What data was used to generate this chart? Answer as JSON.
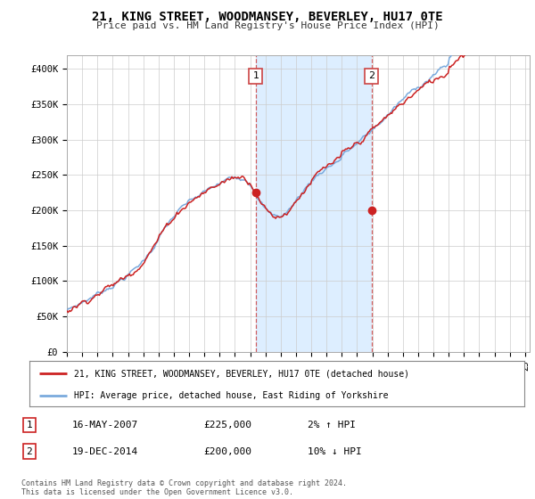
{
  "title": "21, KING STREET, WOODMANSEY, BEVERLEY, HU17 0TE",
  "subtitle": "Price paid vs. HM Land Registry's House Price Index (HPI)",
  "ylabel_ticks": [
    "£0",
    "£50K",
    "£100K",
    "£150K",
    "£200K",
    "£250K",
    "£300K",
    "£350K",
    "£400K"
  ],
  "ytick_values": [
    0,
    50000,
    100000,
    150000,
    200000,
    250000,
    300000,
    350000,
    400000
  ],
  "ylim": [
    0,
    420000
  ],
  "xlim_start": 1995.0,
  "xlim_end": 2025.3,
  "plot_bg_color": "#ffffff",
  "hpi_color": "#7aaadd",
  "price_color": "#cc2222",
  "dashed_color": "#cc4444",
  "span_color": "#ddeeff",
  "sale1_x": 2007.37,
  "sale1_y": 225000,
  "sale2_x": 2014.96,
  "sale2_y": 200000,
  "sale1_label": "1",
  "sale2_label": "2",
  "legend_line1": "21, KING STREET, WOODMANSEY, BEVERLEY, HU17 0TE (detached house)",
  "legend_line2": "HPI: Average price, detached house, East Riding of Yorkshire",
  "table_row1": [
    "1",
    "16-MAY-2007",
    "£225,000",
    "2% ↑ HPI"
  ],
  "table_row2": [
    "2",
    "19-DEC-2014",
    "£200,000",
    "10% ↓ HPI"
  ],
  "footer": "Contains HM Land Registry data © Crown copyright and database right 2024.\nThis data is licensed under the Open Government Licence v3.0."
}
